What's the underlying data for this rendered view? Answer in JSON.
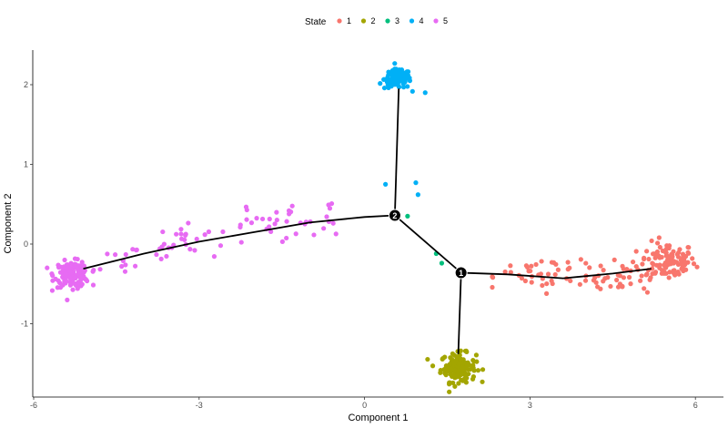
{
  "chart_data": {
    "type": "scatter",
    "title": "",
    "xlabel": "Component 1",
    "ylabel": "Component 2",
    "xlim": [
      -6.0,
      6.5
    ],
    "ylim": [
      -1.9,
      2.45
    ],
    "xticks": [
      -6,
      -3,
      0,
      3,
      6
    ],
    "yticks": [
      -1,
      0,
      1,
      2
    ],
    "grid": false,
    "legend": {
      "title": "State",
      "position": "top",
      "items": [
        {
          "label": "1",
          "color": "#F8766D"
        },
        {
          "label": "2",
          "color": "#A3A500"
        },
        {
          "label": "3",
          "color": "#00BF7D"
        },
        {
          "label": "4",
          "color": "#00B0F6"
        },
        {
          "label": "5",
          "color": "#E76BF3"
        }
      ]
    },
    "clusters": [
      {
        "state": "1",
        "shape": "band",
        "x_from": 2.3,
        "x_to": 5.2,
        "y_center_from": -0.38,
        "y_center_to": -0.38,
        "y_spread": 0.1,
        "count": 80
      },
      {
        "state": "1",
        "shape": "blob",
        "x": 5.5,
        "y": -0.22,
        "sx": 0.25,
        "sy": 0.12,
        "count": 110
      },
      {
        "state": "2",
        "shape": "blob",
        "x": 1.7,
        "y": -1.55,
        "sx": 0.16,
        "sy": 0.09,
        "count": 140
      },
      {
        "state": "4",
        "shape": "blob",
        "x": 0.6,
        "y": 2.07,
        "sx": 0.12,
        "sy": 0.06,
        "count": 120
      },
      {
        "state": "5",
        "shape": "blob",
        "x": -5.3,
        "y": -0.38,
        "sx": 0.16,
        "sy": 0.08,
        "count": 140
      },
      {
        "state": "5",
        "shape": "band",
        "x_from": -4.7,
        "x_to": -0.5,
        "y_center_from": -0.18,
        "y_center_to": 0.38,
        "y_spread": 0.12,
        "count": 75
      }
    ],
    "points": [
      {
        "x": 0.38,
        "y": 0.75,
        "state": "4"
      },
      {
        "x": 0.93,
        "y": 0.77,
        "state": "4"
      },
      {
        "x": 0.97,
        "y": 0.62,
        "state": "4"
      },
      {
        "x": 0.78,
        "y": 0.35,
        "state": "3"
      },
      {
        "x": 1.3,
        "y": -0.12,
        "state": "3"
      },
      {
        "x": 1.4,
        "y": -0.24,
        "state": "3"
      },
      {
        "x": 1.1,
        "y": 1.9,
        "state": "4"
      }
    ],
    "trajectory": [
      {
        "name": "branch-5",
        "points": [
          [
            -5.1,
            -0.31
          ],
          [
            -4.0,
            -0.12
          ],
          [
            -3.0,
            0.03
          ],
          [
            -2.0,
            0.15
          ],
          [
            -1.0,
            0.27
          ],
          [
            0.0,
            0.34
          ],
          [
            0.55,
            0.36
          ]
        ]
      },
      {
        "name": "branch-4",
        "points": [
          [
            0.55,
            0.36
          ],
          [
            0.62,
            1.95
          ]
        ]
      },
      {
        "name": "branch-mid",
        "points": [
          [
            0.55,
            0.36
          ],
          [
            1.75,
            -0.36
          ]
        ]
      },
      {
        "name": "branch-2",
        "points": [
          [
            1.75,
            -0.36
          ],
          [
            1.7,
            -1.38
          ]
        ]
      },
      {
        "name": "branch-1",
        "points": [
          [
            1.75,
            -0.36
          ],
          [
            2.6,
            -0.38
          ],
          [
            3.6,
            -0.43
          ],
          [
            4.5,
            -0.37
          ],
          [
            5.2,
            -0.31
          ]
        ]
      }
    ],
    "branch_points": [
      {
        "label": "1",
        "x": 1.75,
        "y": -0.36
      },
      {
        "label": "2",
        "x": 0.55,
        "y": 0.36
      }
    ]
  }
}
